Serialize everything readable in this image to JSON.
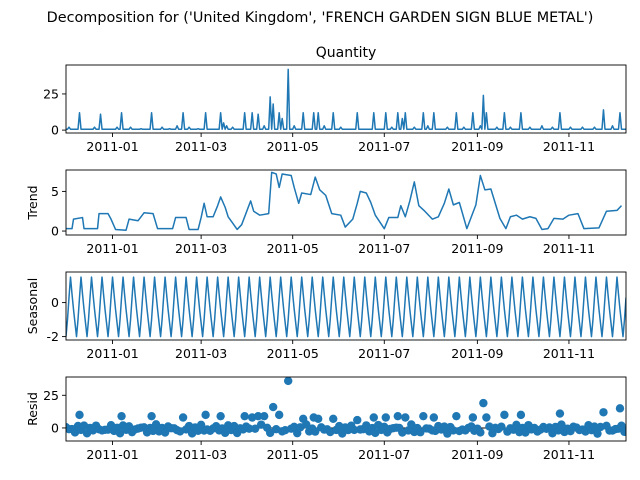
{
  "figure": {
    "title": "Decomposition for ('United Kingdom', 'FRENCH GARDEN SIGN BLUE METAL')"
  },
  "chart_data": [
    {
      "type": "line",
      "panel": "observed",
      "title": "Quantity",
      "ylabel": "",
      "xlim": [
        "2010-12-01",
        "2011-12-09"
      ],
      "ylim": [
        -2,
        45
      ],
      "yticks": [
        0,
        25
      ],
      "xticks": [
        "2011-01",
        "2011-03",
        "2011-05",
        "2011-07",
        "2011-09",
        "2011-11"
      ],
      "baseline": 0.6,
      "spikes": [
        [
          "2010-12-03",
          2
        ],
        [
          "2010-12-10",
          12
        ],
        [
          "2010-12-20",
          2
        ],
        [
          "2010-12-24",
          11
        ],
        [
          "2011-01-04",
          2
        ],
        [
          "2011-01-07",
          12
        ],
        [
          "2011-01-13",
          2
        ],
        [
          "2011-01-20",
          1
        ],
        [
          "2011-01-27",
          12
        ],
        [
          "2011-02-03",
          2
        ],
        [
          "2011-02-08",
          1
        ],
        [
          "2011-02-13",
          3
        ],
        [
          "2011-02-17",
          12
        ],
        [
          "2011-02-21",
          2
        ],
        [
          "2011-02-27",
          1
        ],
        [
          "2011-03-04",
          12
        ],
        [
          "2011-03-14",
          12
        ],
        [
          "2011-03-16",
          5
        ],
        [
          "2011-03-18",
          3
        ],
        [
          "2011-03-22",
          2
        ],
        [
          "2011-03-30",
          12
        ],
        [
          "2011-04-04",
          12
        ],
        [
          "2011-04-08",
          11
        ],
        [
          "2011-04-12",
          3
        ],
        [
          "2011-04-16",
          23
        ],
        [
          "2011-04-18",
          18
        ],
        [
          "2011-04-22",
          12
        ],
        [
          "2011-04-24",
          8
        ],
        [
          "2011-04-28",
          42
        ],
        [
          "2011-05-02",
          3
        ],
        [
          "2011-05-08",
          12
        ],
        [
          "2011-05-15",
          12
        ],
        [
          "2011-05-18",
          12
        ],
        [
          "2011-05-22",
          3
        ],
        [
          "2011-05-28",
          12
        ],
        [
          "2011-06-02",
          2
        ],
        [
          "2011-06-13",
          12
        ],
        [
          "2011-06-24",
          12
        ],
        [
          "2011-07-02",
          12
        ],
        [
          "2011-07-06",
          2
        ],
        [
          "2011-07-10",
          12
        ],
        [
          "2011-07-13",
          8
        ],
        [
          "2011-07-15",
          12
        ],
        [
          "2011-07-21",
          2
        ],
        [
          "2011-07-27",
          12
        ],
        [
          "2011-07-30",
          3
        ],
        [
          "2011-08-03",
          12
        ],
        [
          "2011-08-12",
          2
        ],
        [
          "2011-08-18",
          12
        ],
        [
          "2011-08-23",
          2
        ],
        [
          "2011-08-29",
          12
        ],
        [
          "2011-09-03",
          3
        ],
        [
          "2011-09-05",
          24
        ],
        [
          "2011-09-07",
          12
        ],
        [
          "2011-09-14",
          2
        ],
        [
          "2011-09-19",
          12
        ],
        [
          "2011-09-23",
          2
        ],
        [
          "2011-09-30",
          12
        ],
        [
          "2011-10-06",
          2
        ],
        [
          "2011-10-14",
          3
        ],
        [
          "2011-10-21",
          2
        ],
        [
          "2011-10-26",
          12
        ],
        [
          "2011-11-02",
          2
        ],
        [
          "2011-11-10",
          2
        ],
        [
          "2011-11-18",
          2
        ],
        [
          "2011-11-24",
          14
        ],
        [
          "2011-11-30",
          3
        ],
        [
          "2011-12-05",
          12
        ]
      ]
    },
    {
      "type": "line",
      "panel": "trend",
      "title": "",
      "ylabel": "Trend",
      "xlim": [
        "2010-12-01",
        "2011-12-09"
      ],
      "ylim": [
        -0.5,
        7.7
      ],
      "yticks": [
        0,
        5
      ],
      "xticks": [
        "2011-01",
        "2011-03",
        "2011-05",
        "2011-07",
        "2011-09",
        "2011-11"
      ],
      "points": [
        [
          "2010-12-01",
          0.3
        ],
        [
          "2010-12-05",
          0.3
        ],
        [
          "2010-12-06",
          1.5
        ],
        [
          "2010-12-12",
          1.7
        ],
        [
          "2010-12-13",
          0.3
        ],
        [
          "2010-12-22",
          0.3
        ],
        [
          "2010-12-23",
          2.2
        ],
        [
          "2010-12-29",
          2.2
        ],
        [
          "2010-12-31",
          1.5
        ],
        [
          "2011-01-03",
          0.2
        ],
        [
          "2011-01-10",
          0.1
        ],
        [
          "2011-01-12",
          1.5
        ],
        [
          "2011-01-18",
          1.3
        ],
        [
          "2011-01-22",
          2.3
        ],
        [
          "2011-01-28",
          2.2
        ],
        [
          "2011-01-31",
          0.3
        ],
        [
          "2011-02-10",
          0.3
        ],
        [
          "2011-02-12",
          1.7
        ],
        [
          "2011-02-19",
          1.7
        ],
        [
          "2011-02-21",
          0.2
        ],
        [
          "2011-02-27",
          0.2
        ],
        [
          "2011-03-01",
          1.7
        ],
        [
          "2011-03-03",
          3.5
        ],
        [
          "2011-03-05",
          1.8
        ],
        [
          "2011-03-09",
          1.8
        ],
        [
          "2011-03-12",
          3.2
        ],
        [
          "2011-03-14",
          4.3
        ],
        [
          "2011-03-17",
          3.0
        ],
        [
          "2011-03-19",
          1.8
        ],
        [
          "2011-03-22",
          1.0
        ],
        [
          "2011-03-25",
          0.2
        ],
        [
          "2011-03-28",
          0.8
        ],
        [
          "2011-03-31",
          2.3
        ],
        [
          "2011-04-03",
          3.8
        ],
        [
          "2011-04-05",
          2.5
        ],
        [
          "2011-04-09",
          2.0
        ],
        [
          "2011-04-15",
          2.2
        ],
        [
          "2011-04-17",
          7.4
        ],
        [
          "2011-04-20",
          7.2
        ],
        [
          "2011-04-22",
          5.5
        ],
        [
          "2011-04-24",
          7.2
        ],
        [
          "2011-04-30",
          7.0
        ],
        [
          "2011-05-02",
          5.5
        ],
        [
          "2011-05-05",
          3.5
        ],
        [
          "2011-05-07",
          4.8
        ],
        [
          "2011-05-13",
          4.6
        ],
        [
          "2011-05-16",
          6.8
        ],
        [
          "2011-05-19",
          5.2
        ],
        [
          "2011-05-23",
          4.5
        ],
        [
          "2011-05-27",
          2.2
        ],
        [
          "2011-06-02",
          2.0
        ],
        [
          "2011-06-05",
          0.5
        ],
        [
          "2011-06-10",
          1.5
        ],
        [
          "2011-06-13",
          3.5
        ],
        [
          "2011-06-15",
          5.0
        ],
        [
          "2011-06-19",
          4.8
        ],
        [
          "2011-06-22",
          3.6
        ],
        [
          "2011-06-25",
          2.0
        ],
        [
          "2011-07-01",
          0.3
        ],
        [
          "2011-07-04",
          1.7
        ],
        [
          "2011-07-10",
          1.7
        ],
        [
          "2011-07-12",
          3.2
        ],
        [
          "2011-07-15",
          1.8
        ],
        [
          "2011-07-18",
          3.8
        ],
        [
          "2011-07-21",
          6.2
        ],
        [
          "2011-07-24",
          3.2
        ],
        [
          "2011-07-28",
          2.5
        ],
        [
          "2011-08-02",
          1.5
        ],
        [
          "2011-08-06",
          1.8
        ],
        [
          "2011-08-10",
          3.5
        ],
        [
          "2011-08-13",
          5.3
        ],
        [
          "2011-08-16",
          3.3
        ],
        [
          "2011-08-20",
          3.6
        ],
        [
          "2011-08-25",
          0.3
        ],
        [
          "2011-08-31",
          3.3
        ],
        [
          "2011-09-03",
          7.0
        ],
        [
          "2011-09-06",
          5.2
        ],
        [
          "2011-09-10",
          5.3
        ],
        [
          "2011-09-16",
          1.6
        ],
        [
          "2011-09-20",
          0.3
        ],
        [
          "2011-09-23",
          1.8
        ],
        [
          "2011-09-27",
          2.0
        ],
        [
          "2011-10-01",
          1.5
        ],
        [
          "2011-10-06",
          1.8
        ],
        [
          "2011-10-10",
          1.6
        ],
        [
          "2011-10-14",
          0.2
        ],
        [
          "2011-10-18",
          0.3
        ],
        [
          "2011-10-22",
          1.6
        ],
        [
          "2011-10-28",
          1.5
        ],
        [
          "2011-11-01",
          2.0
        ],
        [
          "2011-11-07",
          2.2
        ],
        [
          "2011-11-11",
          0.3
        ],
        [
          "2011-11-21",
          0.4
        ],
        [
          "2011-11-26",
          2.5
        ],
        [
          "2011-12-03",
          2.6
        ],
        [
          "2011-12-06",
          3.2
        ]
      ]
    },
    {
      "type": "line",
      "panel": "seasonal",
      "title": "",
      "ylabel": "Seasonal",
      "xlim": [
        "2010-12-01",
        "2011-12-09"
      ],
      "ylim": [
        -2.2,
        1.8
      ],
      "yticks": [
        -2,
        0
      ],
      "xticks": [
        "2011-01",
        "2011-03",
        "2011-05",
        "2011-07",
        "2011-09",
        "2011-11"
      ],
      "period_days": 7,
      "cycle": [
        -2.0,
        -1.0,
        0.3,
        1.5,
        0.5,
        -0.4,
        -1.2
      ]
    },
    {
      "type": "scatter",
      "panel": "resid",
      "title": "",
      "ylabel": "Resid",
      "xlim": [
        "2010-12-01",
        "2011-12-09"
      ],
      "ylim": [
        -10,
        39
      ],
      "yticks": [
        0,
        25
      ],
      "xticks": [
        "2011-01",
        "2011-03",
        "2011-05",
        "2011-07",
        "2011-09",
        "2011-11"
      ],
      "marker_color": "#1f77b4",
      "zero_line": true,
      "outliers": [
        [
          "2010-12-10",
          10
        ],
        [
          "2011-01-07",
          9
        ],
        [
          "2011-01-27",
          9
        ],
        [
          "2011-02-17",
          8
        ],
        [
          "2011-03-04",
          10
        ],
        [
          "2011-03-14",
          9
        ],
        [
          "2011-03-30",
          9
        ],
        [
          "2011-04-04",
          8
        ],
        [
          "2011-04-08",
          9
        ],
        [
          "2011-04-12",
          9
        ],
        [
          "2011-04-18",
          16
        ],
        [
          "2011-04-22",
          10
        ],
        [
          "2011-04-28",
          36
        ],
        [
          "2011-05-08",
          7
        ],
        [
          "2011-05-15",
          8
        ],
        [
          "2011-05-18",
          7
        ],
        [
          "2011-05-28",
          7
        ],
        [
          "2011-06-13",
          6
        ],
        [
          "2011-06-24",
          8
        ],
        [
          "2011-07-02",
          8
        ],
        [
          "2011-07-10",
          9
        ],
        [
          "2011-07-15",
          8
        ],
        [
          "2011-07-27",
          9
        ],
        [
          "2011-08-03",
          8
        ],
        [
          "2011-08-18",
          9
        ],
        [
          "2011-08-29",
          8
        ],
        [
          "2011-09-05",
          19
        ],
        [
          "2011-09-07",
          8
        ],
        [
          "2011-09-19",
          10
        ],
        [
          "2011-09-30",
          10
        ],
        [
          "2011-10-26",
          11
        ],
        [
          "2011-11-24",
          12
        ],
        [
          "2011-12-05",
          15
        ]
      ]
    }
  ]
}
